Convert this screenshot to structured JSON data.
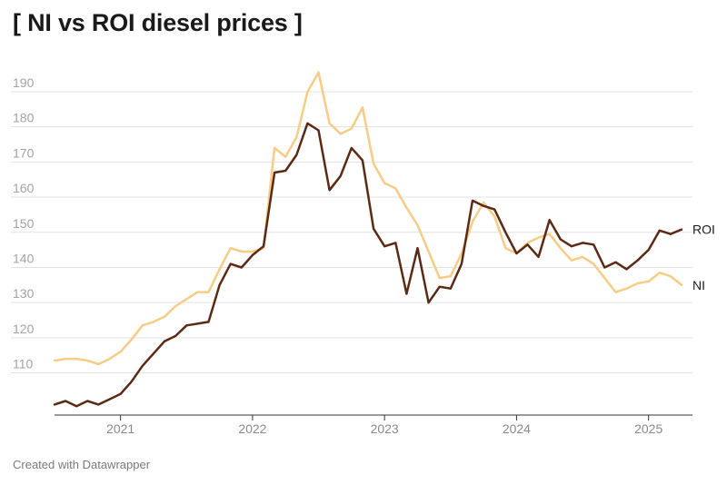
{
  "title": "[ NI vs ROI diesel prices ]",
  "footer": "Created with Datawrapper",
  "chart_data": {
    "type": "line",
    "title": "[ NI vs ROI diesel prices ]",
    "xlabel": "",
    "ylabel": "",
    "ylim": [
      98,
      198
    ],
    "yticks": [
      110,
      120,
      130,
      140,
      150,
      160,
      170,
      180,
      190
    ],
    "xlim": [
      "2020-07",
      "2025-04"
    ],
    "xticks": [
      {
        "date": "2021-01",
        "label": "2021"
      },
      {
        "date": "2022-01",
        "label": "2022"
      },
      {
        "date": "2023-01",
        "label": "2023"
      },
      {
        "date": "2024-01",
        "label": "2024"
      },
      {
        "date": "2025-01",
        "label": "2025"
      }
    ],
    "grid": true,
    "legend": "direct labels at line ends",
    "x": [
      "2020-07",
      "2020-08",
      "2020-09",
      "2020-10",
      "2020-11",
      "2020-12",
      "2021-01",
      "2021-02",
      "2021-03",
      "2021-04",
      "2021-05",
      "2021-06",
      "2021-07",
      "2021-08",
      "2021-09",
      "2021-10",
      "2021-11",
      "2021-12",
      "2022-01",
      "2022-02",
      "2022-03",
      "2022-04",
      "2022-05",
      "2022-06",
      "2022-07",
      "2022-08",
      "2022-09",
      "2022-10",
      "2022-11",
      "2022-12",
      "2023-01",
      "2023-02",
      "2023-03",
      "2023-04",
      "2023-05",
      "2023-06",
      "2023-07",
      "2023-08",
      "2023-09",
      "2023-10",
      "2023-11",
      "2023-12",
      "2024-01",
      "2024-02",
      "2024-03",
      "2024-04",
      "2024-05",
      "2024-06",
      "2024-07",
      "2024-08",
      "2024-09",
      "2024-10",
      "2024-11",
      "2024-12",
      "2025-01",
      "2025-02",
      "2025-03",
      "2025-04"
    ],
    "series": [
      {
        "name": "ROI",
        "color": "#5a2a14",
        "values": [
          101.0,
          102.0,
          100.5,
          102.0,
          101.0,
          102.5,
          104.0,
          107.5,
          112.0,
          115.5,
          119.0,
          120.5,
          123.5,
          124.0,
          124.5,
          135.0,
          141.0,
          140.0,
          143.5,
          146.0,
          167.0,
          167.5,
          172.0,
          181.0,
          179.0,
          162.0,
          166.0,
          174.0,
          170.5,
          151.0,
          146.0,
          147.0,
          132.5,
          145.5,
          130.0,
          134.5,
          134.0,
          141.0,
          159.0,
          157.5,
          156.5,
          150.0,
          144.0,
          146.5,
          143.0,
          153.5,
          148.0,
          146.0,
          147.0,
          146.5,
          140.0,
          141.5,
          139.5,
          142.0,
          145.0,
          150.5,
          149.5,
          150.8
        ]
      },
      {
        "name": "NI",
        "color": "#f7cc86",
        "values": [
          113.5,
          114.0,
          114.0,
          113.5,
          112.5,
          114.0,
          116.0,
          119.5,
          123.5,
          124.5,
          126.0,
          129.0,
          131.0,
          133.0,
          133.0,
          139.5,
          145.5,
          144.5,
          144.5,
          145.5,
          174.0,
          171.5,
          177.0,
          190.0,
          195.5,
          181.0,
          178.0,
          179.5,
          185.5,
          169.5,
          164.0,
          162.5,
          157.0,
          152.0,
          144.5,
          137.0,
          137.5,
          144.0,
          153.0,
          158.5,
          154.5,
          145.5,
          144.0,
          147.0,
          148.5,
          149.5,
          145.5,
          142.0,
          143.0,
          141.0,
          137.0,
          133.0,
          134.0,
          135.5,
          136.0,
          138.5,
          137.5,
          135.0
        ]
      }
    ]
  }
}
